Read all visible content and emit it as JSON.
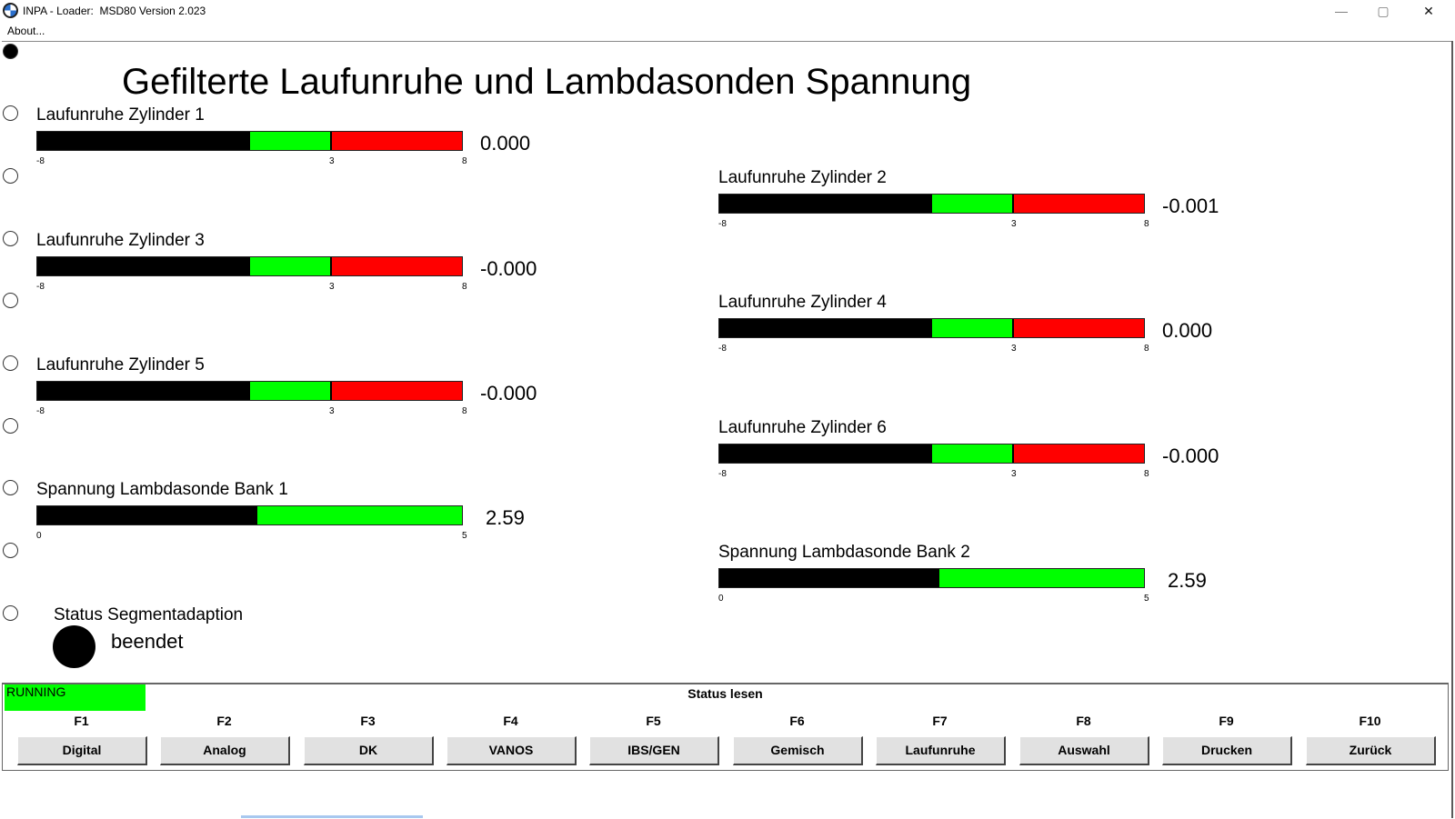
{
  "window": {
    "title": "INPA - Loader:  MSD80 Version 2.023",
    "menu_about": "About...",
    "minimize_glyph": "—",
    "maximize_glyph": "▢",
    "close_glyph": "✕"
  },
  "page_title": "Gefilterte Laufunruhe und Lambdasonden Spannung",
  "gauges": [
    {
      "label": "Laufunruhe Zylinder 1",
      "value": "0.000",
      "min": "-8",
      "mid": "3",
      "max": "8",
      "needle": 0.5
    },
    {
      "label": "Laufunruhe Zylinder 2",
      "value": "-0.001",
      "min": "-8",
      "mid": "3",
      "max": "8",
      "needle": 0.5
    },
    {
      "label": "Laufunruhe Zylinder 3",
      "value": "-0.000",
      "min": "-8",
      "mid": "3",
      "max": "8",
      "needle": 0.5
    },
    {
      "label": "Laufunruhe Zylinder 4",
      "value": "0.000",
      "min": "-8",
      "mid": "3",
      "max": "8",
      "needle": 0.5
    },
    {
      "label": "Laufunruhe Zylinder 5",
      "value": "-0.000",
      "min": "-8",
      "mid": "3",
      "max": "8",
      "needle": 0.5
    },
    {
      "label": "Laufunruhe Zylinder 6",
      "value": "-0.000",
      "min": "-8",
      "mid": "3",
      "max": "8",
      "needle": 0.5
    },
    {
      "label": "Spannung Lambdasonde Bank 1",
      "value": "2.59",
      "min": "0",
      "max": "5",
      "needle": 0.518
    },
    {
      "label": "Spannung Lambdasonde Bank 2",
      "value": "2.59",
      "min": "0",
      "max": "5",
      "needle": 0.518
    }
  ],
  "status": {
    "label": "Status Segmentadaption",
    "value": "beendet"
  },
  "bottom": {
    "running": "RUNNING",
    "status_lesen": "Status lesen"
  },
  "fkeys": [
    {
      "key": "F1",
      "label": "Digital"
    },
    {
      "key": "F2",
      "label": "Analog"
    },
    {
      "key": "F3",
      "label": "DK"
    },
    {
      "key": "F4",
      "label": "VANOS"
    },
    {
      "key": "F5",
      "label": "IBS/GEN"
    },
    {
      "key": "F6",
      "label": "Gemisch"
    },
    {
      "key": "F7",
      "label": "Laufunruhe"
    },
    {
      "key": "F8",
      "label": "Auswahl"
    },
    {
      "key": "F9",
      "label": "Drucken"
    },
    {
      "key": "F10",
      "label": "Zurück"
    }
  ]
}
